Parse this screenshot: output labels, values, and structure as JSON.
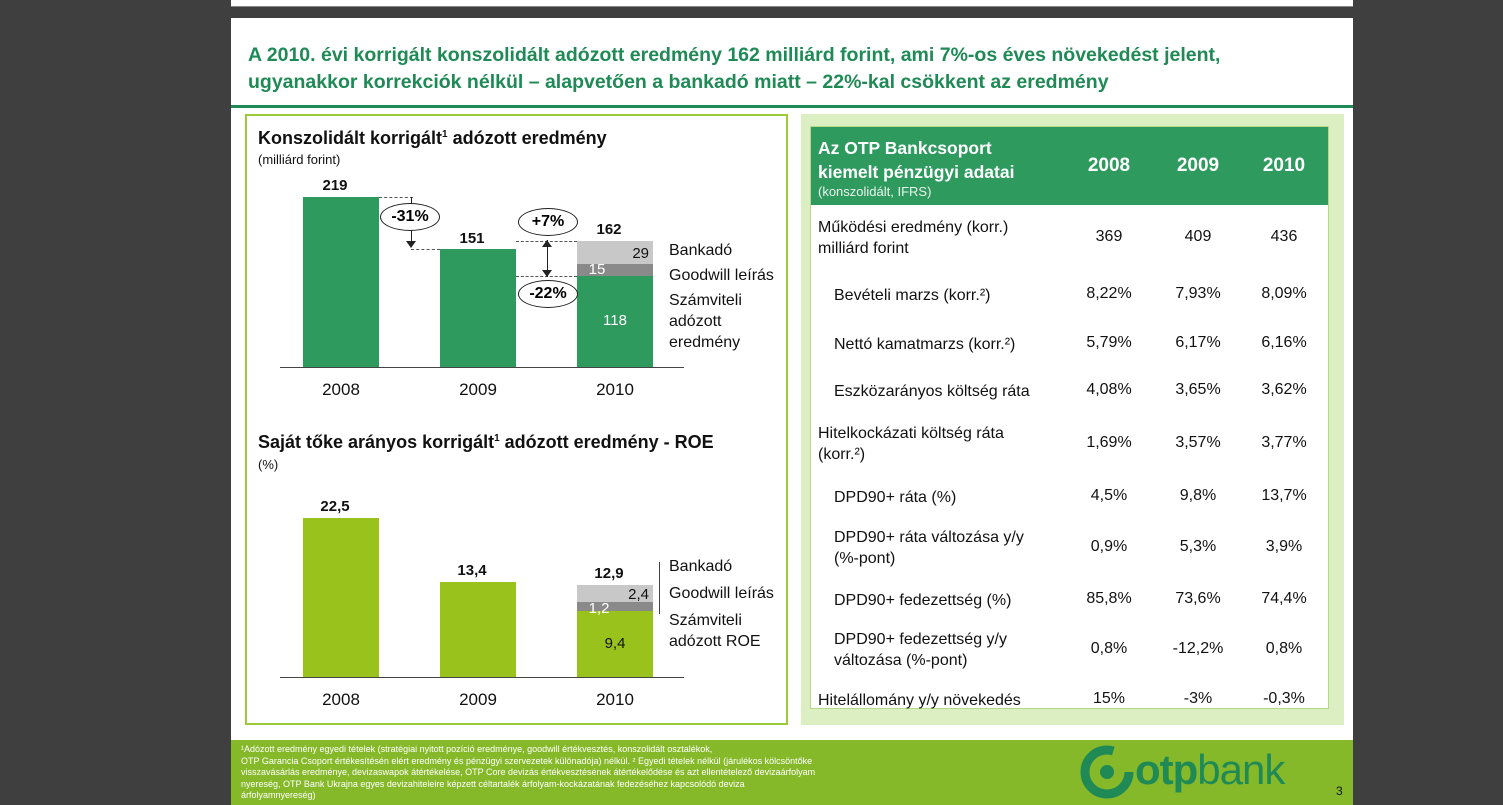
{
  "slide": {
    "title_line1": "A 2010. évi korrigált konszolidált adózott eredmény 162 milliárd forint, ami 7%-os éves növekedést jelent,",
    "title_line2": "ugyanakkor korrekciók nélkül – alapvetően a bankadó miatt – 22%-kal csökkent az eredmény",
    "page_number": "3"
  },
  "chart1": {
    "title_pre": "Konszolidált korrigált",
    "title_sup": "1",
    "title_post": " adózott eredmény",
    "subtitle": "(milliárd forint)",
    "years": [
      "2008",
      "2009",
      "2010"
    ],
    "totals": [
      "219",
      "151",
      "162"
    ],
    "segments_2010": {
      "base": "118",
      "goodwill": "15",
      "bankado": "29"
    },
    "legend": {
      "bankado": "Bankadó",
      "goodwill": "Goodwill leírás",
      "base_line1": "Számviteli",
      "base_line2": "adózott",
      "base_line3": "eredmény"
    },
    "changes": {
      "y2009": "-31%",
      "y2010_korr": "+7%",
      "y2010": "-22%"
    }
  },
  "chart2": {
    "title_pre": "Saját tőke arányos korrigált",
    "title_sup": "1",
    "title_post": " adózott eredmény - ROE",
    "subtitle": "(%)",
    "years": [
      "2008",
      "2009",
      "2010"
    ],
    "totals": [
      "22,5",
      "13,4",
      "12,9"
    ],
    "segments_2010": {
      "base": "9,4",
      "goodwill": "1,2",
      "bankado": "2,4"
    },
    "legend": {
      "bankado": "Bankadó",
      "goodwill": "Goodwill leírás",
      "base_line1": "Számviteli",
      "base_line2": "adózott ROE"
    }
  },
  "chart_data": [
    {
      "type": "bar",
      "title": "Konszolidált korrigált¹ adózott eredmény",
      "ylabel": "(milliárd forint)",
      "categories": [
        "2008",
        "2009",
        "2010"
      ],
      "values": [
        219,
        151,
        162
      ],
      "stack_2010": [
        {
          "name": "Számviteli adózott eredmény",
          "value": 118
        },
        {
          "name": "Goodwill leírás",
          "value": 15
        },
        {
          "name": "Bankadó",
          "value": 29
        }
      ],
      "annotations": [
        "-31%",
        "+7%",
        "-22%"
      ],
      "colors": {
        "base": "#2e9a5e",
        "goodwill": "#8a8a8a",
        "bankado": "#c8c8c8"
      }
    },
    {
      "type": "bar",
      "title": "Saját tőke arányos korrigált¹ adózott eredmény - ROE",
      "ylabel": "(%)",
      "categories": [
        "2008",
        "2009",
        "2010"
      ],
      "values": [
        22.5,
        13.4,
        12.9
      ],
      "stack_2010": [
        {
          "name": "Számviteli adózott ROE",
          "value": 9.4
        },
        {
          "name": "Goodwill leírás",
          "value": 1.2
        },
        {
          "name": "Bankadó",
          "value": 2.4
        }
      ],
      "colors": {
        "base": "#99c31c",
        "goodwill": "#8a8a8a",
        "bankado": "#c8c8c8"
      }
    }
  ],
  "table": {
    "header_line1": "Az OTP Bankcsoport",
    "header_line2": "kiemelt pénzügyi adatai",
    "header_sub": "(konszolidált, IFRS)",
    "years": [
      "2008",
      "2009",
      "2010"
    ],
    "rows": [
      {
        "label1": "Működési eredmény (korr.)",
        "label2": "milliárd forint",
        "v": [
          "369",
          "409",
          "436"
        ]
      },
      {
        "label1": "Bevételi marzs (korr.²)",
        "label2": "",
        "v": [
          "8,22%",
          "7,93%",
          "8,09%"
        ]
      },
      {
        "label1": "Nettó kamatmarzs (korr.²)",
        "label2": "",
        "v": [
          "5,79%",
          "6,17%",
          "6,16%"
        ]
      },
      {
        "label1": "Eszközarányos költség ráta",
        "label2": "",
        "v": [
          "4,08%",
          "3,65%",
          "3,62%"
        ]
      },
      {
        "label1": "Hitelkockázati költség ráta",
        "label2": "(korr.²)",
        "v": [
          "1,69%",
          "3,57%",
          "3,77%"
        ]
      },
      {
        "label1": "DPD90+ ráta (%)",
        "label2": "",
        "v": [
          "4,5%",
          "9,8%",
          "13,7%"
        ]
      },
      {
        "label1": "DPD90+ ráta változása y/y",
        "label2": "(%-pont)",
        "v": [
          "0,9%",
          "5,3%",
          "3,9%"
        ]
      },
      {
        "label1": "DPD90+ fedezettség (%)",
        "label2": "",
        "v": [
          "85,8%",
          "73,6%",
          "74,4%"
        ]
      },
      {
        "label1": "DPD90+ fedezettség y/y",
        "label2": "változása (%-pont)",
        "v": [
          "0,8%",
          "-12,2%",
          "0,8%"
        ]
      },
      {
        "label1": "Hitelállomány y/y növekedés",
        "label2": "",
        "v": [
          "15%",
          "-3%",
          "-0,3%"
        ]
      }
    ]
  },
  "footer": {
    "line1": "¹Adózott eredmény egyedi tételek (stratégiai nyitott pozíció eredménye, goodwill értékvesztés, konszolidált osztalékok,",
    "line2": "OTP Garancia Csoport értékesítésén elért eredmény és pénzügyi szervezetek különadója) nélkül. ² Egyedi tételek nélkül  (járulékos kölcsöntőke",
    "line3": "visszavásárlás eredménye, devizaswapok átértékelése, OTP Core devizás értékvesztésének átértékelődése és azt ellentételező devizaárfolyam",
    "line4": "nyereség, OTP Bank Ukrajna egyes devizahiteleire képzett céltartalék árfolyam-kockázatának fedezéséhez kapcsolódó deviza árfolyamnyereség)",
    "logo_text_1": "otp",
    "logo_text_2": "bank"
  }
}
